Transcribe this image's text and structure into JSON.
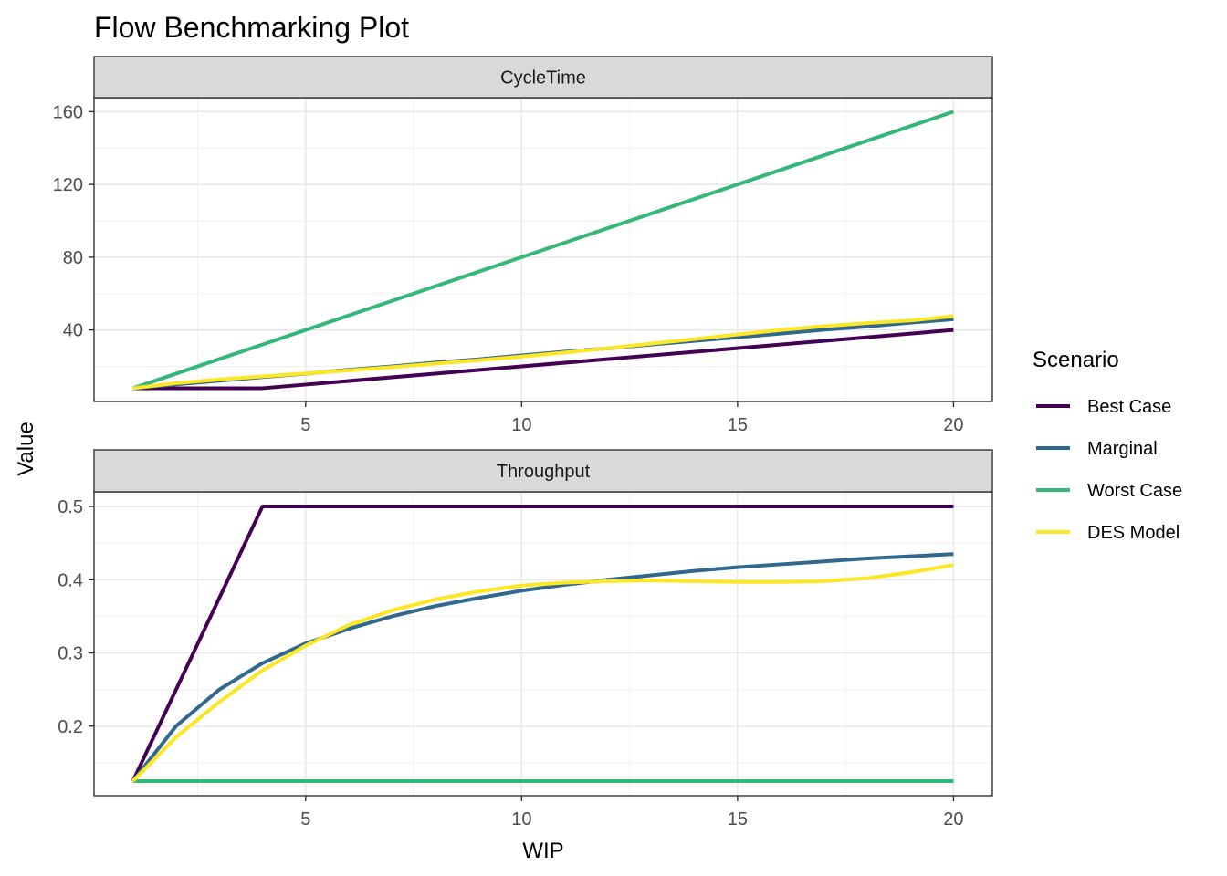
{
  "title": "Flow Benchmarking Plot",
  "ylabel": "Value",
  "xlabel": "WIP",
  "legend": {
    "title": "Scenario",
    "placement": "right",
    "items": [
      {
        "label": "Best Case",
        "color": "#440154"
      },
      {
        "label": "Marginal",
        "color": "#31688E"
      },
      {
        "label": "Worst Case",
        "color": "#35B779"
      },
      {
        "label": "DES Model",
        "color": "#FDE725"
      }
    ]
  },
  "chart_data": [
    {
      "type": "line",
      "facet": "CycleTime",
      "xlim": [
        0.1,
        20.9
      ],
      "ylim": [
        0.7,
        167.7
      ],
      "xticks": [
        5,
        10,
        15,
        20
      ],
      "yticks": [
        40,
        80,
        120,
        160
      ],
      "grid": true,
      "series": [
        {
          "name": "Best Case",
          "color": "#440154",
          "x": [
            1,
            4,
            20
          ],
          "y": [
            8,
            8,
            40
          ]
        },
        {
          "name": "Marginal",
          "color": "#31688E",
          "x": [
            1,
            2,
            3,
            4,
            5,
            6,
            7,
            8,
            9,
            10,
            11,
            12,
            13,
            14,
            15,
            16,
            17,
            18,
            19,
            20
          ],
          "y": [
            8,
            10.1,
            12.1,
            14.1,
            16.0,
            18.1,
            20.0,
            22.1,
            23.9,
            26.0,
            28.1,
            29.9,
            32.0,
            34.0,
            36.0,
            38.0,
            40.1,
            41.9,
            44.0,
            45.9
          ]
        },
        {
          "name": "Worst Case",
          "color": "#35B779",
          "x": [
            1,
            20
          ],
          "y": [
            8,
            160
          ]
        },
        {
          "name": "DES Model",
          "color": "#FDE725",
          "x": [
            1,
            2,
            3,
            4,
            5,
            6,
            7,
            8,
            9,
            10,
            11,
            12,
            13,
            14,
            15,
            16,
            17,
            18,
            19,
            20
          ],
          "y": [
            8,
            10.8,
            12.8,
            14.5,
            16.1,
            17.8,
            19.6,
            21.5,
            23.4,
            25.4,
            27.6,
            30.0,
            32.5,
            35.0,
            37.5,
            40.0,
            42.1,
            43.8,
            45.2,
            47.6
          ]
        }
      ]
    },
    {
      "type": "line",
      "facet": "Throughput",
      "xlim": [
        0.1,
        20.9
      ],
      "ylim": [
        0.105,
        0.52
      ],
      "xticks": [
        5,
        10,
        15,
        20
      ],
      "yticks": [
        0.2,
        0.3,
        0.4,
        0.5
      ],
      "grid": true,
      "series": [
        {
          "name": "Best Case",
          "color": "#440154",
          "x": [
            1,
            4,
            20
          ],
          "y": [
            0.125,
            0.5,
            0.5
          ]
        },
        {
          "name": "Marginal",
          "color": "#31688E",
          "x": [
            1,
            2,
            3,
            4,
            5,
            6,
            7,
            8,
            9,
            10,
            11,
            12,
            13,
            14,
            15,
            16,
            17,
            18,
            19,
            20
          ],
          "y": [
            0.125,
            0.2,
            0.25,
            0.286,
            0.313,
            0.333,
            0.35,
            0.364,
            0.375,
            0.385,
            0.393,
            0.4,
            0.406,
            0.412,
            0.417,
            0.421,
            0.425,
            0.429,
            0.432,
            0.435
          ]
        },
        {
          "name": "Worst Case",
          "color": "#35B779",
          "x": [
            1,
            20
          ],
          "y": [
            0.125,
            0.125
          ]
        },
        {
          "name": "DES Model",
          "color": "#FDE725",
          "x": [
            1,
            2,
            3,
            4,
            5,
            6,
            7,
            8,
            9,
            10,
            11,
            12,
            13,
            14,
            15,
            16,
            17,
            18,
            19,
            20
          ],
          "y": [
            0.125,
            0.185,
            0.233,
            0.276,
            0.31,
            0.338,
            0.358,
            0.373,
            0.384,
            0.392,
            0.396,
            0.398,
            0.399,
            0.398,
            0.397,
            0.397,
            0.398,
            0.402,
            0.41,
            0.42
          ]
        }
      ]
    }
  ]
}
